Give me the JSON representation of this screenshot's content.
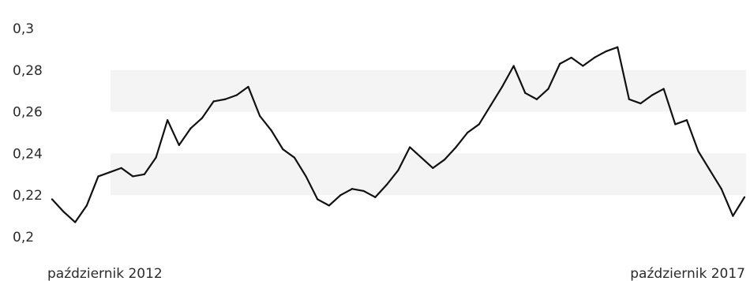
{
  "chart_data": {
    "type": "line",
    "title": "",
    "xlabel": "",
    "ylabel": "",
    "ylim": [
      0.2,
      0.3
    ],
    "y_ticks": [
      "0,2",
      "0,22",
      "0,24",
      "0,26",
      "0,28",
      "0,3"
    ],
    "y_tick_values": [
      0.2,
      0.22,
      0.24,
      0.26,
      0.28,
      0.3
    ],
    "x_labels": [
      "październik 2012",
      "październik 2017"
    ],
    "grid": "alternating horizontal bands",
    "legend": "none",
    "line_color": "#111111",
    "band_color": "#f4f4f4",
    "series": [
      {
        "x": [
          "2012-10",
          "2012-11",
          "2012-12",
          "2013-01",
          "2013-02",
          "2013-03",
          "2013-04",
          "2013-05",
          "2013-06",
          "2013-07",
          "2013-08",
          "2013-09",
          "2013-10",
          "2013-11",
          "2013-12",
          "2014-01",
          "2014-02",
          "2014-03",
          "2014-04",
          "2014-05",
          "2014-06",
          "2014-07",
          "2014-08",
          "2014-09",
          "2014-10",
          "2014-11",
          "2014-12",
          "2015-01",
          "2015-02",
          "2015-03",
          "2015-04",
          "2015-05",
          "2015-06",
          "2015-07",
          "2015-08",
          "2015-09",
          "2015-10",
          "2015-11",
          "2015-12",
          "2016-01",
          "2016-02",
          "2016-03",
          "2016-04",
          "2016-05",
          "2016-06",
          "2016-07",
          "2016-08",
          "2016-09",
          "2016-10",
          "2016-11",
          "2016-12",
          "2017-01",
          "2017-02",
          "2017-03",
          "2017-04",
          "2017-05",
          "2017-06",
          "2017-07",
          "2017-08",
          "2017-09",
          "2017-10"
        ],
        "values": [
          0.218,
          0.212,
          0.207,
          0.215,
          0.229,
          0.231,
          0.233,
          0.229,
          0.23,
          0.238,
          0.256,
          0.244,
          0.252,
          0.257,
          0.265,
          0.266,
          0.268,
          0.272,
          0.258,
          0.251,
          0.242,
          0.238,
          0.229,
          0.218,
          0.215,
          0.22,
          0.223,
          0.222,
          0.219,
          0.225,
          0.232,
          0.243,
          0.238,
          0.233,
          0.237,
          0.243,
          0.25,
          0.254,
          0.263,
          0.272,
          0.282,
          0.269,
          0.266,
          0.271,
          0.283,
          0.286,
          0.282,
          0.286,
          0.289,
          0.291,
          0.266,
          0.264,
          0.268,
          0.271,
          0.254,
          0.256,
          0.241,
          0.232,
          0.223,
          0.21,
          0.219
        ]
      }
    ]
  }
}
